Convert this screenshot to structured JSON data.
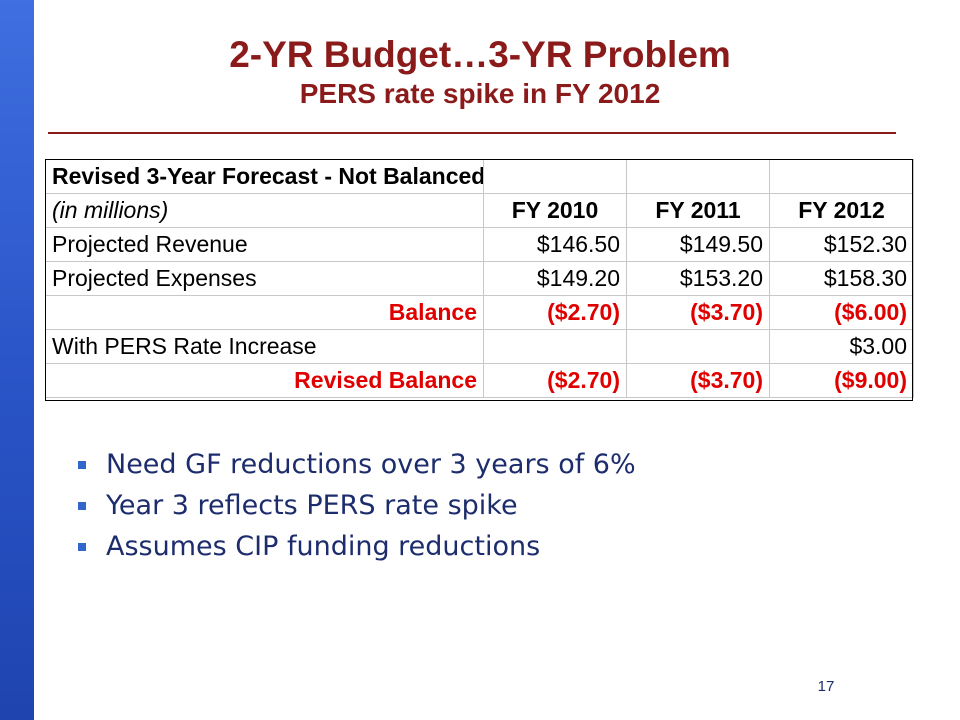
{
  "slide": {
    "title_line1": "2-YR Budget…3-YR Problem",
    "title_line2": "PERS rate spike in FY 2012",
    "page_number": "17",
    "colors": {
      "title": "#8b1a1a",
      "accent_bar": "#2a55c8",
      "emphasis_red": "#e00000",
      "bullet_text": "#1c2c6c"
    }
  },
  "forecast_table": {
    "title": "Revised 3-Year Forecast - Not Balanced",
    "units_label": "(in millions)",
    "columns": [
      "FY 2010",
      "FY 2011",
      "FY 2012"
    ],
    "rows": [
      {
        "label": "Projected Revenue",
        "values": [
          "$146.50",
          "$149.50",
          "$152.30"
        ]
      },
      {
        "label": "Projected Expenses",
        "values": [
          "$149.20",
          "$153.20",
          "$158.30"
        ]
      },
      {
        "label": "Balance",
        "values": [
          "($2.70)",
          "($3.70)",
          "($6.00)"
        ]
      },
      {
        "label": "With PERS Rate Increase",
        "values": [
          "",
          "",
          "$3.00"
        ]
      },
      {
        "label": "Revised Balance",
        "values": [
          "($2.70)",
          "($3.70)",
          "($9.00)"
        ]
      }
    ]
  },
  "bullets": [
    "Need GF reductions over 3 years of 6%",
    "Year 3 reflects PERS rate spike",
    "Assumes CIP funding reductions"
  ]
}
